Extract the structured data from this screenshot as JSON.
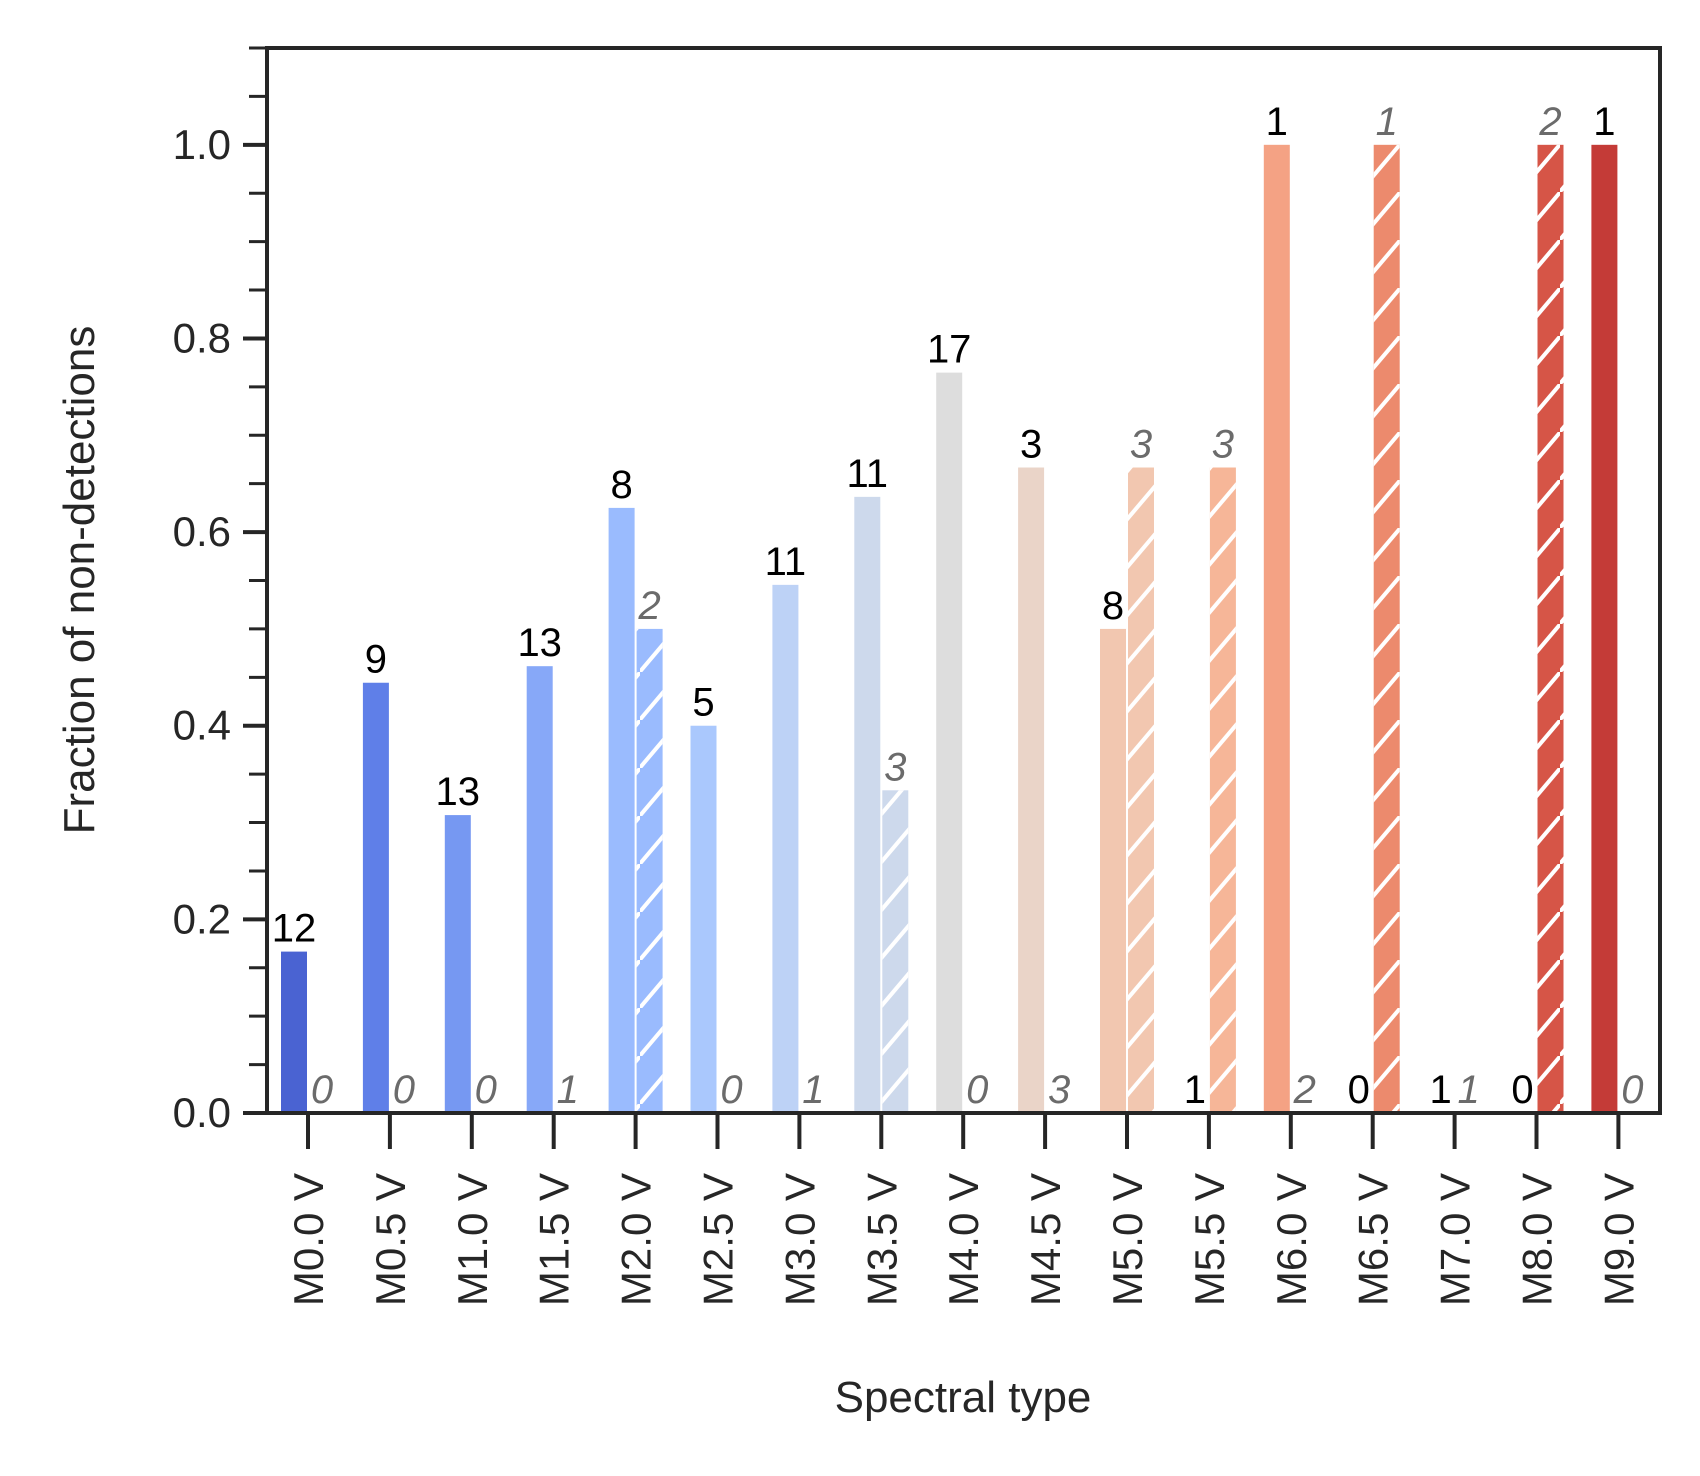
{
  "chart_data": {
    "type": "bar",
    "xlabel": "Spectral type",
    "ylabel": "Fraction of non-detections",
    "ylim": [
      0.0,
      1.1
    ],
    "yticks": [
      "0.0",
      "0.2",
      "0.4",
      "0.6",
      "0.8",
      "1.0"
    ],
    "grid": false,
    "categories": [
      "M0.0 V",
      "M0.5 V",
      "M1.0 V",
      "M1.5 V",
      "M2.0 V",
      "M2.5 V",
      "M3.0 V",
      "M3.5 V",
      "M4.0 V",
      "M4.5 V",
      "M5.0 V",
      "M5.5 V",
      "M6.0 V",
      "M6.5 V",
      "M7.0 V",
      "M8.0 V",
      "M9.0 V"
    ],
    "colors": [
      "#4a63d2",
      "#5f7fe8",
      "#7698f2",
      "#87a8f8",
      "#9abbfe",
      "#aac8fd",
      "#bdd2f6",
      "#cdd9ec",
      "#dddddd",
      "#ead4c8",
      "#f2c7b0",
      "#f6b698",
      "#f4a284",
      "#ec8a6d",
      "#e07558",
      "#d65547",
      "#c43b37"
    ],
    "series": [
      {
        "values": [
          0.1667,
          0.4444,
          0.3077,
          0.4615,
          0.625,
          0.4,
          0.5455,
          0.6364,
          0.7647,
          0.6667,
          0.5,
          0.0,
          1.0,
          0.0,
          0.0,
          0.0,
          1.0
        ],
        "labels": [
          "12",
          "9",
          "13",
          "13",
          "8",
          "5",
          "11",
          "11",
          "17",
          "3",
          "8",
          "1",
          "1",
          "0",
          "1",
          "0",
          "1"
        ],
        "hatch": false
      },
      {
        "values": [
          0.0,
          0.0,
          0.0,
          0.0,
          0.5,
          0.0,
          0.0,
          0.3333,
          0.0,
          0.0,
          0.6667,
          0.6667,
          0.0,
          1.0,
          0.0,
          1.0,
          0.0
        ],
        "labels": [
          "0",
          "0",
          "0",
          "1",
          "2",
          "0",
          "1",
          "3",
          "0",
          "3",
          "3",
          "3",
          "2",
          "1",
          "1",
          "2",
          "0"
        ],
        "hatch": true
      }
    ]
  }
}
